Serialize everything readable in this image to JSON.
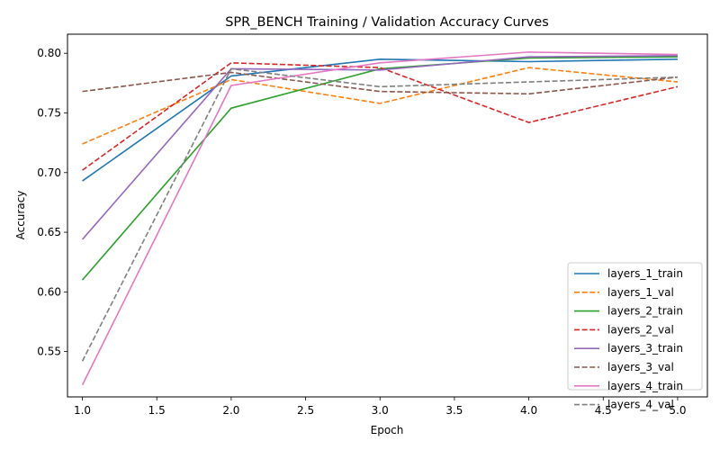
{
  "chart_data": {
    "type": "line",
    "title": "SPR_BENCH Training / Validation Accuracy Curves",
    "xlabel": "Epoch",
    "ylabel": "Accuracy",
    "xlim": [
      0.9,
      5.2
    ],
    "ylim": [
      0.512,
      0.816
    ],
    "xticks": [
      1.0,
      1.5,
      2.0,
      2.5,
      3.0,
      3.5,
      4.0,
      4.5,
      5.0
    ],
    "xtick_labels": [
      "1.0",
      "1.5",
      "2.0",
      "2.5",
      "3.0",
      "3.5",
      "4.0",
      "4.5",
      "5.0"
    ],
    "yticks": [
      0.55,
      0.6,
      0.65,
      0.7,
      0.75,
      0.8
    ],
    "ytick_labels": [
      "0.55",
      "0.60",
      "0.65",
      "0.70",
      "0.75",
      "0.80"
    ],
    "grid": false,
    "legend_position": "lower-right",
    "x": [
      1,
      2,
      3,
      4,
      5
    ],
    "series": [
      {
        "name": "layers_1_train",
        "color": "#1f77b4",
        "dash": "solid",
        "values": [
          0.693,
          0.781,
          0.795,
          0.793,
          0.795
        ]
      },
      {
        "name": "layers_1_val",
        "color": "#ff7f0e",
        "dash": "dashed",
        "values": [
          0.724,
          0.778,
          0.758,
          0.788,
          0.776
        ]
      },
      {
        "name": "layers_2_train",
        "color": "#2ca02c",
        "dash": "solid",
        "values": [
          0.61,
          0.754,
          0.787,
          0.796,
          0.797
        ]
      },
      {
        "name": "layers_2_val",
        "color": "#d62728",
        "dash": "dashed",
        "values": [
          0.702,
          0.792,
          0.788,
          0.742,
          0.772
        ]
      },
      {
        "name": "layers_3_train",
        "color": "#9467bd",
        "dash": "solid",
        "values": [
          0.644,
          0.787,
          0.786,
          0.797,
          0.798
        ]
      },
      {
        "name": "layers_3_val",
        "color": "#8c564b",
        "dash": "dashed",
        "values": [
          0.768,
          0.784,
          0.768,
          0.766,
          0.78
        ]
      },
      {
        "name": "layers_4_train",
        "color": "#e377c2",
        "dash": "solid",
        "values": [
          0.522,
          0.773,
          0.792,
          0.801,
          0.799
        ]
      },
      {
        "name": "layers_4_val",
        "color": "#7f7f7f",
        "dash": "dashed",
        "values": [
          0.542,
          0.787,
          0.772,
          0.776,
          0.78
        ]
      }
    ]
  }
}
